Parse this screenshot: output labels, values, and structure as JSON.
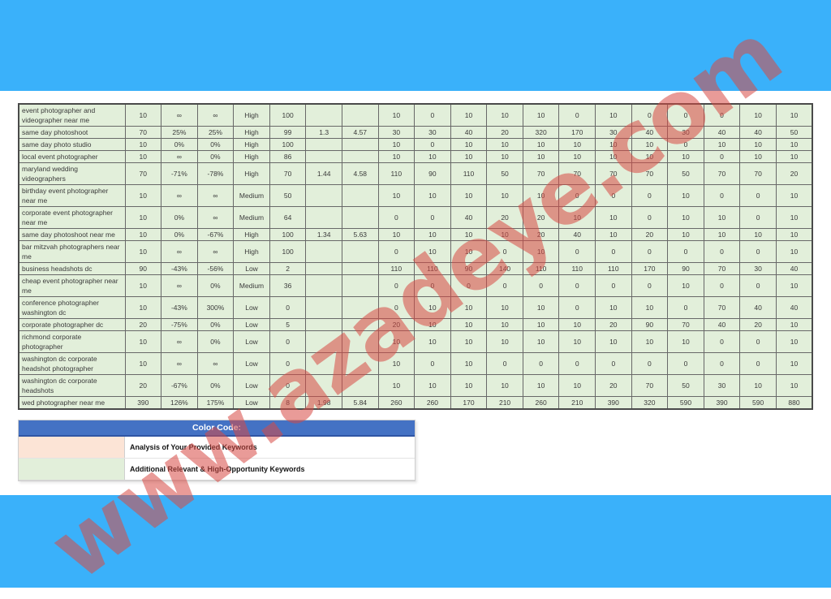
{
  "colors": {
    "band_blue": "#3ab1fa",
    "cell_green": "#e2efda",
    "swatch_peach": "#fce4d6",
    "legend_header_blue": "#4472c4",
    "watermark_red": "#d84a44"
  },
  "watermark": {
    "text": "www.azadeye.com",
    "color": "#d84a44",
    "opacity": 0.55
  },
  "table": {
    "rows": [
      {
        "keyword": "event photographer and videographer near me",
        "values": [
          "10",
          "∞",
          "∞",
          "High",
          "100",
          "",
          "",
          "10",
          "0",
          "10",
          "10",
          "10",
          "0",
          "10",
          "0",
          "0",
          "0",
          "10",
          "10"
        ]
      },
      {
        "keyword": "same day photoshoot",
        "values": [
          "70",
          "25%",
          "25%",
          "High",
          "99",
          "1.3",
          "4.57",
          "30",
          "30",
          "40",
          "20",
          "320",
          "170",
          "30",
          "40",
          "30",
          "40",
          "40",
          "50"
        ]
      },
      {
        "keyword": "same day photo studio",
        "values": [
          "10",
          "0%",
          "0%",
          "High",
          "100",
          "",
          "",
          "10",
          "0",
          "10",
          "10",
          "10",
          "10",
          "10",
          "10",
          "0",
          "10",
          "10",
          "10"
        ]
      },
      {
        "keyword": "local event photographer",
        "values": [
          "10",
          "∞",
          "0%",
          "High",
          "86",
          "",
          "",
          "10",
          "10",
          "10",
          "10",
          "10",
          "10",
          "10",
          "10",
          "10",
          "0",
          "10",
          "10"
        ]
      },
      {
        "keyword": "maryland wedding videographers",
        "values": [
          "70",
          "-71%",
          "-78%",
          "High",
          "70",
          "1.44",
          "4.58",
          "110",
          "90",
          "110",
          "50",
          "70",
          "70",
          "70",
          "70",
          "50",
          "70",
          "70",
          "20"
        ]
      },
      {
        "keyword": "birthday event photographer near me",
        "values": [
          "10",
          "∞",
          "∞",
          "Medium",
          "50",
          "",
          "",
          "10",
          "10",
          "10",
          "10",
          "10",
          "0",
          "0",
          "0",
          "10",
          "0",
          "0",
          "10"
        ]
      },
      {
        "keyword": "corporate event photographer near me",
        "values": [
          "10",
          "0%",
          "∞",
          "Medium",
          "64",
          "",
          "",
          "0",
          "0",
          "40",
          "20",
          "20",
          "10",
          "10",
          "0",
          "10",
          "10",
          "0",
          "10"
        ]
      },
      {
        "keyword": "same day photoshoot near me",
        "values": [
          "10",
          "0%",
          "-67%",
          "High",
          "100",
          "1.34",
          "5.63",
          "10",
          "10",
          "10",
          "10",
          "20",
          "40",
          "10",
          "20",
          "10",
          "10",
          "10",
          "10"
        ]
      },
      {
        "keyword": "bar mitzvah photographers near me",
        "values": [
          "10",
          "∞",
          "∞",
          "High",
          "100",
          "",
          "",
          "0",
          "10",
          "10",
          "0",
          "10",
          "0",
          "0",
          "0",
          "0",
          "0",
          "0",
          "10"
        ]
      },
      {
        "keyword": "business headshots dc",
        "values": [
          "90",
          "-43%",
          "-56%",
          "Low",
          "2",
          "",
          "",
          "110",
          "110",
          "90",
          "140",
          "110",
          "110",
          "110",
          "170",
          "90",
          "70",
          "30",
          "40"
        ]
      },
      {
        "keyword": "cheap event photographer near me",
        "values": [
          "10",
          "∞",
          "0%",
          "Medium",
          "36",
          "",
          "",
          "0",
          "0",
          "0",
          "0",
          "0",
          "0",
          "0",
          "0",
          "10",
          "0",
          "0",
          "10"
        ]
      },
      {
        "keyword": "conference photographer washington dc",
        "values": [
          "10",
          "-43%",
          "300%",
          "Low",
          "0",
          "",
          "",
          "0",
          "10",
          "10",
          "10",
          "10",
          "0",
          "10",
          "10",
          "0",
          "70",
          "40",
          "40"
        ]
      },
      {
        "keyword": "corporate photographer dc",
        "values": [
          "20",
          "-75%",
          "0%",
          "Low",
          "5",
          "",
          "",
          "20",
          "10",
          "10",
          "10",
          "10",
          "10",
          "20",
          "90",
          "70",
          "40",
          "20",
          "10"
        ]
      },
      {
        "keyword": "richmond corporate photographer",
        "values": [
          "10",
          "∞",
          "0%",
          "Low",
          "0",
          "",
          "",
          "10",
          "10",
          "10",
          "10",
          "10",
          "10",
          "10",
          "10",
          "10",
          "0",
          "0",
          "10"
        ]
      },
      {
        "keyword": "washington dc corporate headshot photographer",
        "values": [
          "10",
          "∞",
          "∞",
          "Low",
          "0",
          "",
          "",
          "10",
          "0",
          "10",
          "0",
          "0",
          "0",
          "0",
          "0",
          "0",
          "0",
          "0",
          "10"
        ]
      },
      {
        "keyword": "washington dc corporate headshots",
        "values": [
          "20",
          "-67%",
          "0%",
          "Low",
          "0",
          "",
          "",
          "10",
          "10",
          "10",
          "10",
          "10",
          "10",
          "20",
          "70",
          "50",
          "30",
          "10",
          "10"
        ]
      },
      {
        "keyword": "wed photographer near me",
        "values": [
          "390",
          "126%",
          "175%",
          "Low",
          "8",
          "1.98",
          "5.84",
          "260",
          "260",
          "170",
          "210",
          "260",
          "210",
          "390",
          "320",
          "590",
          "390",
          "590",
          "880"
        ]
      }
    ]
  },
  "legend": {
    "title": "Color Code:",
    "items": [
      {
        "label": "Analysis of Your Provided Keywords",
        "swatch_color": "#fce4d6"
      },
      {
        "label": "Additional Relevant & High-Opportunity Keywords",
        "swatch_color": "#e2efda"
      }
    ]
  }
}
